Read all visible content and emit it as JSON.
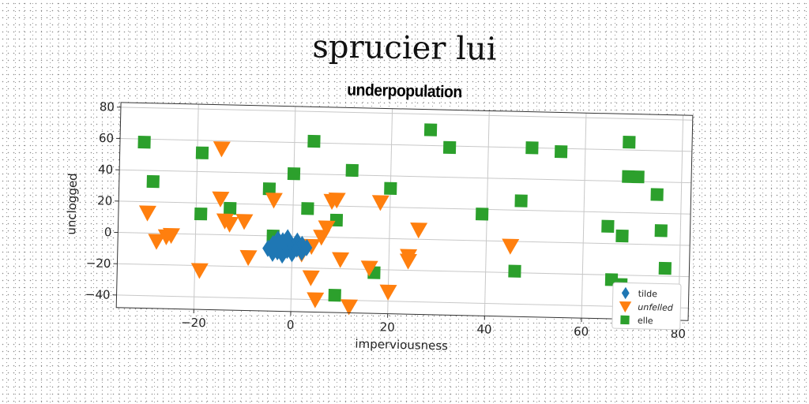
{
  "chart_data": {
    "type": "scatter",
    "title": "sprucier lui",
    "subtitle": "underpopulation",
    "xlabel": "imperviousness",
    "ylabel": "unclogged",
    "xlim": [
      -36,
      82
    ],
    "ylim": [
      -48,
      83
    ],
    "xticks": [
      -20,
      0,
      20,
      40,
      60,
      80
    ],
    "yticks": [
      -40,
      -20,
      0,
      20,
      40,
      60,
      80
    ],
    "grid": true,
    "legend_position": "bottom-right",
    "series": [
      {
        "name": "tilde",
        "marker": "diamond",
        "color": "#1f77b4",
        "points": [
          [
            -5,
            -8
          ],
          [
            -4,
            -5
          ],
          [
            -3,
            -10
          ],
          [
            -3,
            -2
          ],
          [
            -2,
            -7
          ],
          [
            -2,
            -12
          ],
          [
            -1,
            -4
          ],
          [
            -1,
            -9
          ],
          [
            0,
            -6
          ],
          [
            0,
            -11
          ],
          [
            1,
            -3
          ],
          [
            1,
            -8
          ],
          [
            2,
            -10
          ],
          [
            2,
            -5
          ],
          [
            -4,
            -11
          ],
          [
            -1,
            -1
          ],
          [
            3,
            -7
          ],
          [
            -2,
            -3
          ]
        ]
      },
      {
        "name": "unfelled",
        "marker": "triangle-down",
        "color": "#ff7f0e",
        "points": [
          [
            -30,
            13
          ],
          [
            -28,
            -5
          ],
          [
            -26,
            -2
          ],
          [
            -25,
            -1
          ],
          [
            -19,
            -23
          ],
          [
            -15,
            55
          ],
          [
            -15,
            23
          ],
          [
            -14,
            9
          ],
          [
            -13,
            7
          ],
          [
            -10,
            9
          ],
          [
            -9,
            -14
          ],
          [
            -4,
            23
          ],
          [
            -2,
            -11
          ],
          [
            2,
            -11
          ],
          [
            4,
            -6
          ],
          [
            4,
            -26
          ],
          [
            5,
            -40
          ],
          [
            6,
            0
          ],
          [
            7,
            6
          ],
          [
            8,
            23
          ],
          [
            9,
            24
          ],
          [
            10,
            -14
          ],
          [
            12,
            -44
          ],
          [
            16,
            -19
          ],
          [
            18,
            23
          ],
          [
            20,
            -34
          ],
          [
            24,
            -11
          ],
          [
            24,
            -14
          ],
          [
            26,
            6
          ],
          [
            45,
            -3
          ]
        ]
      },
      {
        "name": "elle",
        "marker": "square",
        "color": "#2ca02c",
        "points": [
          [
            -31,
            58
          ],
          [
            -29,
            33
          ],
          [
            -19,
            52
          ],
          [
            -19,
            13
          ],
          [
            -13,
            17
          ],
          [
            -5,
            30
          ],
          [
            -4,
            0
          ],
          [
            0,
            40
          ],
          [
            3,
            18
          ],
          [
            4,
            61
          ],
          [
            9,
            11
          ],
          [
            9,
            -37
          ],
          [
            12,
            43
          ],
          [
            17,
            -22
          ],
          [
            20,
            32
          ],
          [
            28,
            70
          ],
          [
            32,
            59
          ],
          [
            39,
            17
          ],
          [
            46,
            -19
          ],
          [
            47,
            26
          ],
          [
            49,
            60
          ],
          [
            55,
            58
          ],
          [
            65,
            11
          ],
          [
            66,
            -23
          ],
          [
            68,
            -26
          ],
          [
            68,
            5
          ],
          [
            69,
            65
          ],
          [
            69,
            43
          ],
          [
            71,
            43
          ],
          [
            75,
            32
          ],
          [
            76,
            9
          ],
          [
            77,
            -15
          ]
        ]
      }
    ]
  }
}
